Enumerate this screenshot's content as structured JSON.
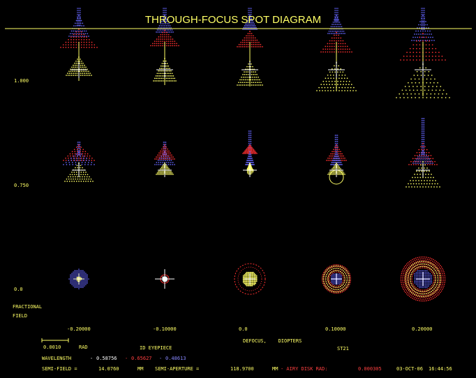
{
  "chart_data": {
    "type": "scatter",
    "title": "THROUGH-FOCUS SPOT DIAGRAM",
    "fields": [
      "1.000",
      "0.750",
      "0.0"
    ],
    "field_label_line1": "FRACTIONAL",
    "field_label_line2": "FIELD",
    "defocus_values": [
      "-0.20000",
      "-0.10000",
      "0.0",
      "0.10000",
      "0.20000"
    ],
    "defocus_label": "DEFOCUS,    DIOPTERS",
    "scale_bar_value": "0.0010",
    "scale_bar_unit": "RAD",
    "lens_name": "ID EYEPIECE",
    "surface_label": "ST21",
    "wavelength_label": "WAVELENGTH",
    "wavelengths": [
      {
        "value": "0.58756",
        "color": "#ffffff"
      },
      {
        "value": "0.65627",
        "color": "#ff4040"
      },
      {
        "value": "0.48613",
        "color": "#8888ff"
      }
    ],
    "semi_field_label": "SEMI-FIELD =",
    "semi_field_value": "14.0760",
    "semi_field_unit": "MM",
    "semi_aperture_label": "SEMI-APERTURE =",
    "semi_aperture_value": "118.9700",
    "semi_aperture_unit": "MM",
    "airy_label": "- AIRY DISK RAD:",
    "airy_value": "0.000305",
    "date": "03-OCT-06",
    "time": "16:44:56",
    "colors": {
      "yellow": "#ffff66",
      "red": "#ff3030",
      "blue": "#6666ff",
      "white": "#ffffff"
    }
  }
}
